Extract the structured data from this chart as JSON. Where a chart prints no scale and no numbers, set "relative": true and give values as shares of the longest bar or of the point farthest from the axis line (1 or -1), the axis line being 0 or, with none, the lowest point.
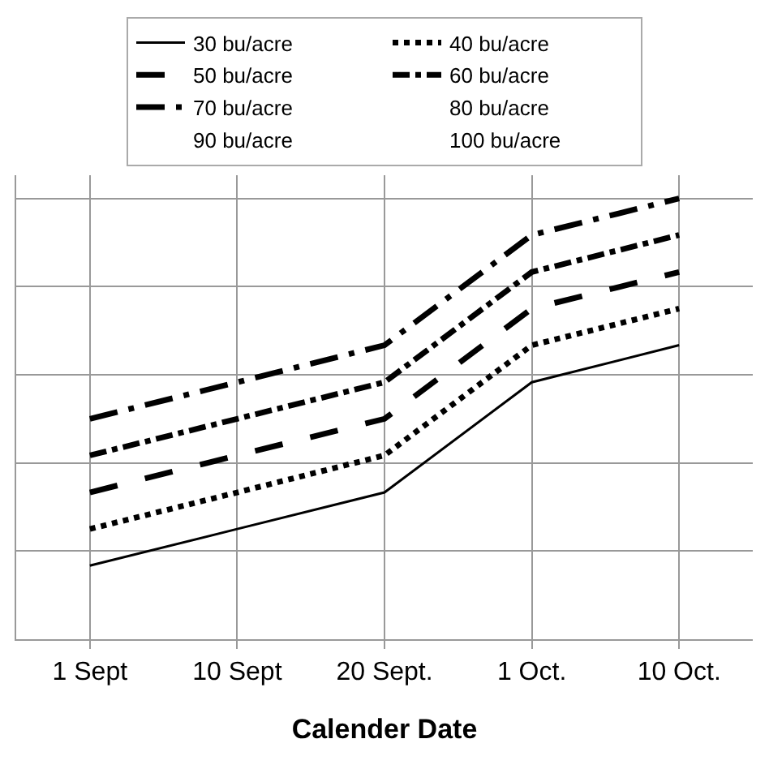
{
  "chart_data": {
    "type": "line",
    "relative": true,
    "xlabel": "Calender Date",
    "categories": [
      "1 Sept",
      "10 Sept",
      "20 Sept.",
      "1 Oct.",
      "10 Oct."
    ],
    "series": [
      {
        "name": "30 bu/acre",
        "color": "#000000",
        "line_style": "solid",
        "values": [
          0.167,
          0.25,
          0.333,
          0.583,
          0.667
        ]
      },
      {
        "name": "40 bu/acre",
        "color": "#000000",
        "line_style": "dotted",
        "values": [
          0.25,
          0.333,
          0.417,
          0.667,
          0.75
        ]
      },
      {
        "name": "50 bu/acre",
        "color": "#000000",
        "line_style": "dashed",
        "values": [
          0.333,
          0.417,
          0.5,
          0.75,
          0.833
        ]
      },
      {
        "name": "60 bu/acre",
        "color": "#000000",
        "line_style": "dashed",
        "values": [
          0.417,
          0.5,
          0.583,
          0.833,
          0.917
        ]
      },
      {
        "name": "70 bu/acre",
        "color": "#000000",
        "line_style": "dashed",
        "values": [
          0.5,
          0.583,
          0.667,
          0.917,
          1
        ]
      },
      {
        "name": "80 bu/acre",
        "line_style": "dotted",
        "values": [
          null,
          null,
          null,
          null,
          null
        ]
      },
      {
        "name": "90 bu/acre",
        "line_style": "dotted",
        "values": [
          null,
          null,
          null,
          null,
          null
        ]
      },
      {
        "name": "100 bu/acre",
        "line_style": "dotted",
        "values": [
          null,
          null,
          null,
          null,
          null
        ]
      }
    ],
    "grid": true,
    "legend": "top",
    "marker": "none",
    "tick_labels": "x"
  }
}
